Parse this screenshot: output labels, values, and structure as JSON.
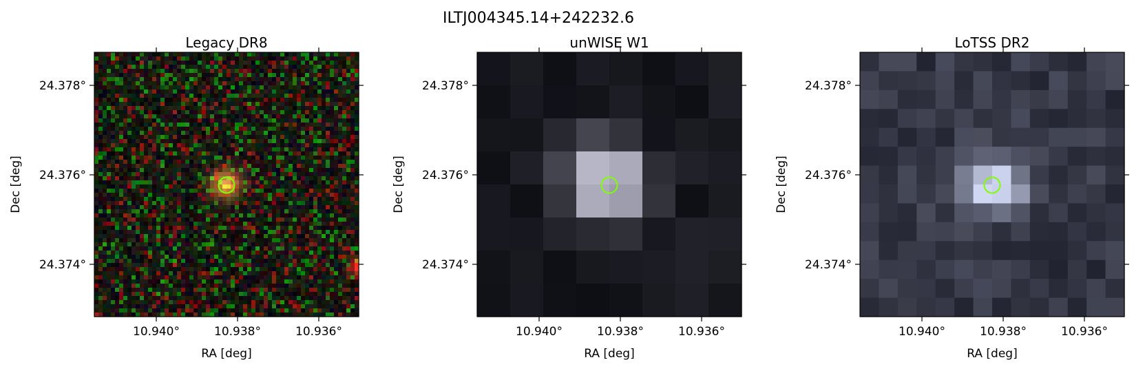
{
  "figure": {
    "title": "ILTJ004345.14+242232.6",
    "marker_color": "#7fff00"
  },
  "panels": [
    {
      "id": "legacy",
      "title": "Legacy DR8",
      "image_kind": "rgb-noise",
      "xlabel": "RA [deg]",
      "ylabel": "Dec [deg]",
      "xticks": [
        "10.940°",
        "10.938°",
        "10.936°"
      ],
      "yticks": [
        "24.378°",
        "24.376°",
        "24.374°"
      ]
    },
    {
      "id": "unwise",
      "title": "unWISE W1",
      "image_kind": "grayscale-coarse",
      "xlabel": "RA [deg]",
      "ylabel": "Dec [deg]",
      "xticks": [
        "10.940°",
        "10.938°",
        "10.936°"
      ],
      "yticks": [
        "24.378°",
        "24.376°",
        "24.374°"
      ]
    },
    {
      "id": "lotss",
      "title": "LoTSS DR2",
      "image_kind": "bone-medium",
      "xlabel": "RA [deg]",
      "ylabel": "Dec [deg]",
      "xticks": [
        "10.940°",
        "10.938°",
        "10.936°"
      ],
      "yticks": [
        "24.378°",
        "24.376°",
        "24.374°"
      ]
    }
  ]
}
